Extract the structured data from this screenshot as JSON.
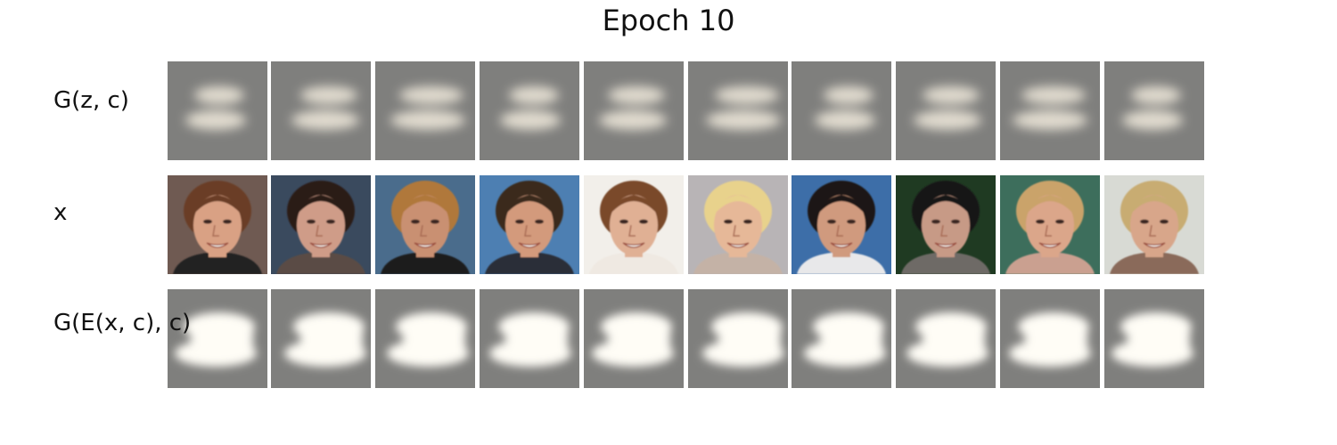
{
  "title": "Epoch 10",
  "rows": [
    {
      "label": "G(z, c)",
      "kind": "generated-sample"
    },
    {
      "label": "x",
      "kind": "real-face-photo"
    },
    {
      "label": "G(E(x, c), c)",
      "kind": "reconstruction"
    }
  ],
  "columns": 10,
  "faces": [
    {
      "bg": "#6f5a52",
      "skin": "#d9a184",
      "hair": "#6a3e26",
      "shirt": "#222222"
    },
    {
      "bg": "#3a4a5e",
      "skin": "#cf9c88",
      "hair": "#2a1a16",
      "shirt": "#5a4c44"
    },
    {
      "bg": "#4a6c8c",
      "skin": "#c99072",
      "hair": "#b0783a",
      "shirt": "#1b1b1b"
    },
    {
      "bg": "#4d7fb2",
      "skin": "#d39a7c",
      "hair": "#3a2a1e",
      "shirt": "#2a2e38"
    },
    {
      "bg": "#f2efea",
      "skin": "#e0b094",
      "hair": "#7a4a2a",
      "shirt": "#efe9e2"
    },
    {
      "bg": "#b8b4b6",
      "skin": "#e6b898",
      "hair": "#e8d28c",
      "shirt": "#c4b2a6"
    },
    {
      "bg": "#3d6ea8",
      "skin": "#d09a7e",
      "hair": "#1e1612",
      "shirt": "#e8e8ea"
    },
    {
      "bg": "#1f3a22",
      "skin": "#c79a86",
      "hair": "#151515",
      "shirt": "#6e6a66"
    },
    {
      "bg": "#3d6e5c",
      "skin": "#dba68a",
      "hair": "#caa36a",
      "shirt": "#caa090"
    },
    {
      "bg": "#d8dad4",
      "skin": "#d8a68a",
      "hair": "#c8ac72",
      "shirt": "#8a6a5a"
    }
  ]
}
